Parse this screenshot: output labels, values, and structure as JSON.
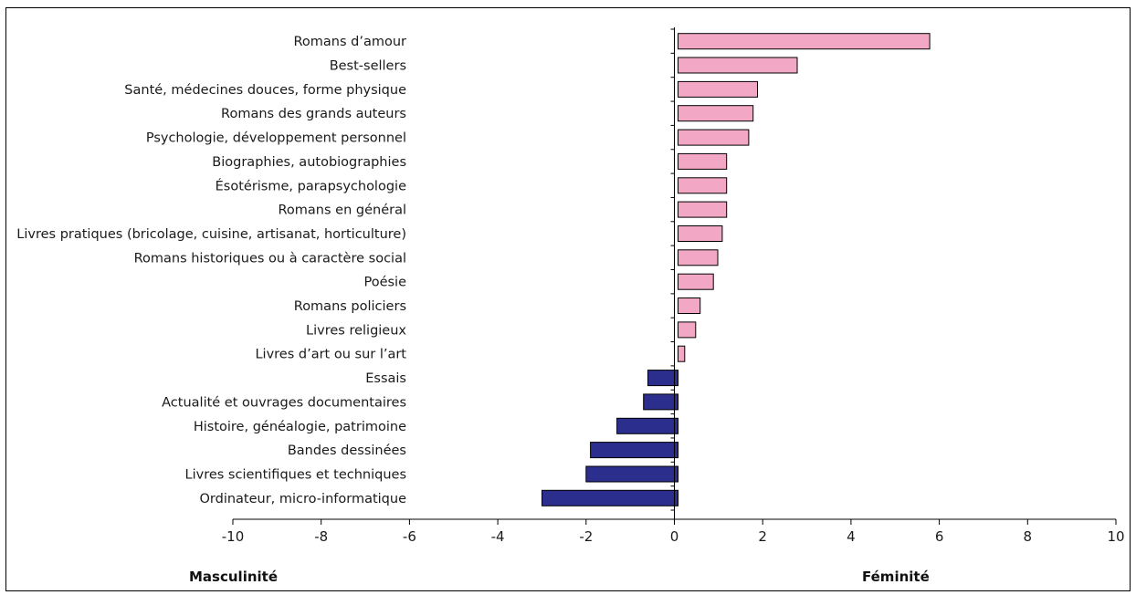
{
  "chart_data": {
    "type": "bar",
    "orientation": "horizontal",
    "categories": [
      "Romans d’amour",
      "Best-sellers",
      "Santé, médecines douces, forme physique",
      "Romans des grands auteurs",
      "Psychologie, développement personnel",
      "Biographies, autobiographies",
      "Ésotérisme, parapsychologie",
      "Romans en général",
      "Livres pratiques (bricolage, cuisine, artisanat, horticulture)",
      "Romans historiques ou à caractère social",
      "Poésie",
      "Romans policiers",
      "Livres religieux",
      "Livres d’art ou sur l’art",
      "Essais",
      "Actualité et ouvrages documentaires",
      "Histoire, généalogie, patrimoine",
      "Bandes dessinées",
      "Livres scientifiques et techniques",
      "Ordinateur, micro-informatique"
    ],
    "values": [
      5.7,
      2.7,
      1.8,
      1.7,
      1.6,
      1.1,
      1.1,
      1.1,
      1.0,
      0.9,
      0.8,
      0.5,
      0.4,
      0.15,
      -0.6,
      -0.7,
      -1.3,
      -1.9,
      -2.0,
      -3.0
    ],
    "xlim": [
      -10,
      10
    ],
    "xticks": [
      "-10",
      "-8",
      "-6",
      "-4",
      "-2",
      "0",
      "2",
      "4",
      "6",
      "8",
      "10"
    ],
    "xtick_values": [
      -10,
      -8,
      -6,
      -4,
      -2,
      0,
      2,
      4,
      6,
      8,
      10
    ],
    "left_label": "Masculinité",
    "right_label": "Féminité",
    "grid": false,
    "colors": {
      "positive": "#f2a7c4",
      "negative": "#2b2e8c",
      "outline": "#000000"
    }
  }
}
